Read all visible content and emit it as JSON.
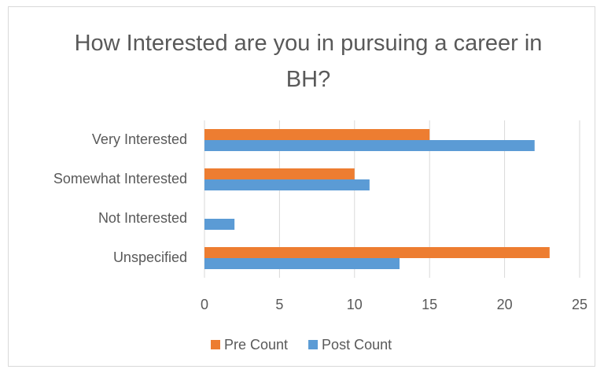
{
  "chart_data": {
    "type": "hbar",
    "title": "How Interested are you in pursuing a career in BH?",
    "categories": [
      "Very Interested",
      "Somewhat Interested",
      "Not Interested",
      "Unspecified"
    ],
    "series": [
      {
        "name": "Pre Count",
        "color": "#ed7d31",
        "values": [
          15,
          10,
          0,
          23
        ]
      },
      {
        "name": "Post Count",
        "color": "#5b9bd5",
        "values": [
          22,
          11,
          2,
          13
        ]
      }
    ],
    "xlim": [
      0,
      25
    ],
    "xticks": [
      0,
      5,
      10,
      15,
      20,
      25
    ],
    "grid": true,
    "legend": "bottom"
  }
}
